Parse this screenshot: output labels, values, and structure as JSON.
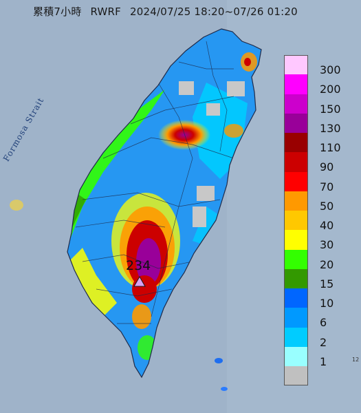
{
  "title": {
    "product": "累積7小時",
    "source": "RWRF",
    "period": "2024/07/25 18:20~07/26 01:20"
  },
  "map": {
    "region": "Taiwan",
    "sea_label": "Formosa Strait",
    "colors": {
      "sea": "#9fb3c9",
      "land_rain_none": "#c8c8c8",
      "boundary": "#1e2a4a"
    }
  },
  "max_point": {
    "value": "234",
    "marker_icon": "triangle-marker-icon",
    "marker_color": "#d9a0f0"
  },
  "legend": {
    "unit_description": "",
    "items": [
      {
        "label": "300",
        "color": "#ffc8ff"
      },
      {
        "label": "200",
        "color": "#ff00ff"
      },
      {
        "label": "150",
        "color": "#cc00cc"
      },
      {
        "label": "130",
        "color": "#990099"
      },
      {
        "label": "110",
        "color": "#990000"
      },
      {
        "label": "90",
        "color": "#cc0000"
      },
      {
        "label": "70",
        "color": "#ff0000"
      },
      {
        "label": "50",
        "color": "#ff9900"
      },
      {
        "label": "40",
        "color": "#ffc800"
      },
      {
        "label": "30",
        "color": "#ffff00"
      },
      {
        "label": "20",
        "color": "#33ff00"
      },
      {
        "label": "15",
        "color": "#339900"
      },
      {
        "label": "10",
        "color": "#0066ff"
      },
      {
        "label": "6",
        "color": "#0099ff"
      },
      {
        "label": "2",
        "color": "#00ccff"
      },
      {
        "label": "1",
        "color": "#99ffff"
      },
      {
        "label": "",
        "color": "#c0c0c0"
      }
    ]
  },
  "edge_fragment": "12"
}
